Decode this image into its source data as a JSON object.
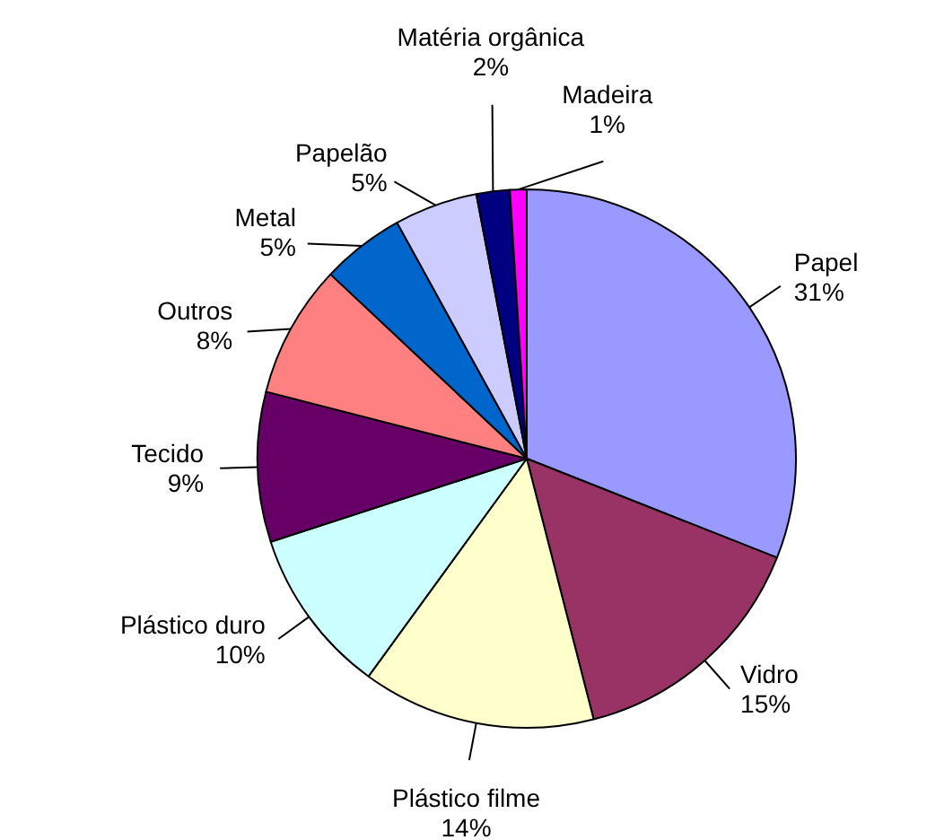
{
  "chart_data": {
    "type": "pie",
    "categories": [
      "Papel",
      "Vidro",
      "Plástico filme",
      "Plástico duro",
      "Tecido",
      "Outros",
      "Metal",
      "Papelão",
      "Matéria orgânica",
      "Madeira"
    ],
    "values": [
      31,
      15,
      14,
      10,
      9,
      8,
      5,
      5,
      2,
      1
    ],
    "value_labels": [
      "31%",
      "15%",
      "14%",
      "10%",
      "9%",
      "8%",
      "5%",
      "5%",
      "2%",
      "1%"
    ],
    "colors": [
      "#9999ff",
      "#993366",
      "#ffffcc",
      "#ccffff",
      "#660066",
      "#ff8080",
      "#0066cc",
      "#ccccff",
      "#000080",
      "#ff00ff"
    ]
  }
}
